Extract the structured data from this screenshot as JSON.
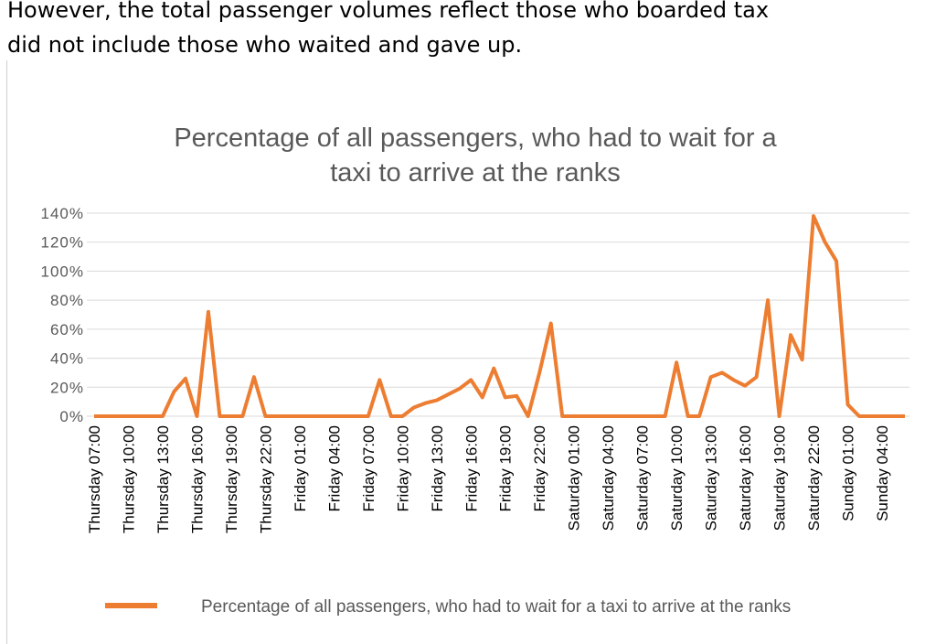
{
  "text": [
    "However, the total passenger volumes reflect those who boarded tax",
    "did not include those who waited and gave up."
  ],
  "chart_data": {
    "type": "line",
    "title": "Percentage of all passengers, who had to wait for a taxi to arrive at the ranks",
    "categories": [
      "Thursday 07:00",
      null,
      null,
      "Thursday 10:00",
      null,
      null,
      "Thursday 13:00",
      null,
      null,
      "Thursday 16:00",
      null,
      null,
      "Thursday 19:00",
      null,
      null,
      "Thursday 22:00",
      null,
      null,
      "Friday 01:00",
      null,
      null,
      "Friday 04:00",
      null,
      null,
      "Friday 07:00",
      null,
      null,
      "Friday 10:00",
      null,
      null,
      "Friday 13:00",
      null,
      null,
      "Friday 16:00",
      null,
      null,
      "Friday 19:00",
      null,
      null,
      "Friday 22:00",
      null,
      null,
      "Saturday 01:00",
      null,
      null,
      "Saturday 04:00",
      null,
      null,
      "Saturday 07:00",
      null,
      null,
      "Saturday 10:00",
      null,
      null,
      "Saturday 13:00",
      null,
      null,
      "Saturday 16:00",
      null,
      null,
      "Saturday 19:00",
      null,
      null,
      "Saturday 22:00",
      null,
      null,
      "Sunday 01:00",
      null,
      null,
      "Sunday 04:00",
      null,
      null
    ],
    "series": [
      {
        "name": "Percentage of all passengers, who had to wait for a taxi to arrive at the ranks",
        "color": "#ed7d31",
        "values": [
          0,
          0,
          0,
          0,
          0,
          0,
          0,
          17,
          26,
          0,
          72,
          0,
          0,
          0,
          27,
          0,
          0,
          0,
          0,
          0,
          0,
          0,
          0,
          0,
          0,
          25,
          0,
          0,
          6,
          9,
          11,
          15,
          19,
          25,
          13,
          33,
          13,
          14,
          0,
          30,
          64,
          0,
          0,
          0,
          0,
          0,
          0,
          0,
          0,
          0,
          0,
          37,
          0,
          0,
          27,
          30,
          25,
          21,
          27,
          80,
          0,
          56,
          39,
          138,
          120,
          107,
          8,
          0,
          0,
          0,
          0,
          0
        ]
      }
    ],
    "ylim": [
      0,
      140
    ],
    "yticks": [
      {
        "value": 0,
        "label": "0%"
      },
      {
        "value": 20,
        "label": "20%"
      },
      {
        "value": 40,
        "label": "40%"
      },
      {
        "value": 60,
        "label": "60%"
      },
      {
        "value": 80,
        "label": "80%"
      },
      {
        "value": 100,
        "label": "100%"
      },
      {
        "value": 120,
        "label": "120%"
      },
      {
        "value": 140,
        "label": "140%"
      }
    ],
    "grid": true,
    "legend": "bottom"
  }
}
